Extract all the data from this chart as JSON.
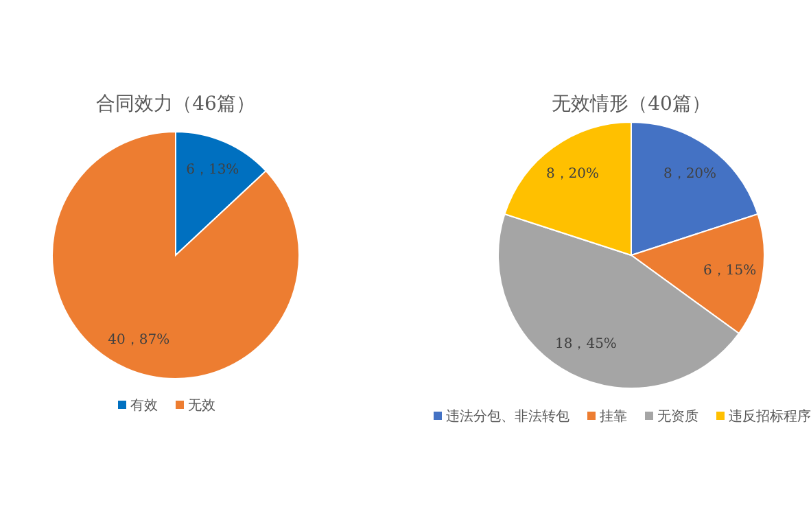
{
  "chart_data": [
    {
      "type": "pie",
      "title": "合同效力（46篇）",
      "categories": [
        "有效",
        "无效"
      ],
      "values": [
        6,
        40
      ],
      "colors": [
        "#0070c0",
        "#ed7d31"
      ],
      "value_labels": [
        "6，13%",
        "40，87%"
      ],
      "legend": "bottom"
    },
    {
      "type": "pie",
      "title": "无效情形（40篇）",
      "categories": [
        "违法分包、非法转包",
        "挂靠",
        "无资质",
        "违反招标程序"
      ],
      "values": [
        8,
        6,
        18,
        8
      ],
      "colors": [
        "#4472c4",
        "#ed7d31",
        "#a5a5a5",
        "#ffc000"
      ],
      "value_labels": [
        "8，20%",
        "6，15%",
        "18，45%",
        "8，20%"
      ],
      "legend": "bottom"
    }
  ]
}
